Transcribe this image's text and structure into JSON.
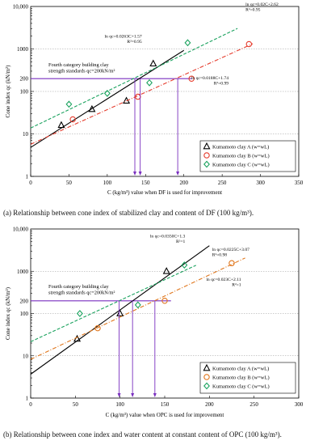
{
  "captions": {
    "a": "(a) Relationship between cone index of stabilized clay and content of DF (100 kg/m³).",
    "b": "(b) Relationship between cone index and water content at constant content of OPC (100 kg/m³)."
  },
  "chart_data": [
    {
      "id": "a",
      "type": "scatter",
      "xlabel": "C (kg/m³) value when DF is used for improvement",
      "ylabel": "Cone index qc (kN/m²)",
      "xlim": [
        0,
        350
      ],
      "ylim": [
        1,
        10000
      ],
      "yscale": "log",
      "xticks": [
        "0",
        "50",
        "100",
        "150",
        "200",
        "250",
        "300",
        "350"
      ],
      "yticks": [
        "1",
        "10",
        "100",
        "200",
        "1000",
        "10,000"
      ],
      "grid": "y-major",
      "legend_position": "bottom-right",
      "standard": {
        "label": "Fourth category building clay strength standards qc=200kN/m²",
        "value": 200
      },
      "series": [
        {
          "name": "Kumamoto clay A (w=wL)",
          "marker": "triangle",
          "color": "#000000",
          "x": [
            40,
            80,
            125,
            160
          ],
          "y": [
            16,
            38,
            60,
            450
          ],
          "fit": {
            "label": "ln qc=0.0263C+1.57",
            "r2": "R²=0.95",
            "a": 0.0263,
            "b": 1.57,
            "x_range": [
              0,
              200
            ]
          },
          "cross_x": 136
        },
        {
          "name": "Kumamoto clay B (w=wL)",
          "marker": "circle",
          "color": "#e53b2c",
          "x": [
            55,
            140,
            210,
            285
          ],
          "y": [
            22,
            75,
            200,
            1300
          ],
          "fit": {
            "label": "ln qc=0.0188C+1.74",
            "r2": "R²=0.99",
            "a": 0.0188,
            "b": 1.74,
            "x_range": [
              0,
              290
            ]
          },
          "cross_x": 192
        },
        {
          "name": "Kumamoto clay C (w=wL)",
          "marker": "diamond",
          "color": "#1aa25e",
          "x": [
            50,
            100,
            155,
            205
          ],
          "y": [
            50,
            90,
            160,
            1400
          ],
          "fit": {
            "label": "ln qc=0.02C+2.62",
            "r2": "R²=0.95",
            "a": 0.02,
            "b": 2.62,
            "x_range": [
              0,
              270
            ]
          },
          "cross_x": 143
        }
      ]
    },
    {
      "id": "b",
      "type": "scatter",
      "xlabel": "C (kg/m³) value when OPC is used for improvement",
      "ylabel": "Cone index qc (kN/m²)",
      "xlim": [
        0,
        300
      ],
      "ylim": [
        1,
        10000
      ],
      "yscale": "log",
      "xticks": [
        "0",
        "50",
        "100",
        "150",
        "200",
        "250",
        "300"
      ],
      "yticks": [
        "1",
        "10",
        "100",
        "200",
        "1000",
        "10,000"
      ],
      "grid": "y-major",
      "legend_position": "bottom-right",
      "standard": {
        "label": "Fourth category building clay strength standards qc=200kN/m²",
        "value": 200
      },
      "series": [
        {
          "name": "Kumamoto clay A (w=wL)",
          "marker": "triangle",
          "color": "#000000",
          "x": [
            52,
            100,
            152
          ],
          "y": [
            25,
            100,
            1000
          ],
          "fit": {
            "label": "ln qc=0.0350C+1.3",
            "r2": "R²=1",
            "a": 0.035,
            "b": 1.3,
            "x_range": [
              0,
              200
            ]
          },
          "cross_x": 114
        },
        {
          "name": "Kumamoto clay B (w=wL)",
          "marker": "circle",
          "color": "#e0761c",
          "x": [
            75,
            150,
            225
          ],
          "y": [
            45,
            200,
            1550
          ],
          "fit": {
            "label": "ln qc=0.023C+2.11",
            "r2": "R²=1",
            "a": 0.023,
            "b": 2.11,
            "x_range": [
              0,
              240
            ]
          },
          "cross_x": 139
        },
        {
          "name": "Kumamoto clay C (w=wL)",
          "marker": "diamond",
          "color": "#1aa25e",
          "x": [
            55,
            120,
            172
          ],
          "y": [
            100,
            160,
            1400
          ],
          "fit": {
            "label": "ln qc=0.0225C+3.07",
            "r2": "R²=0.98",
            "a": 0.0225,
            "b": 3.07,
            "x_range": [
              0,
              185
            ]
          },
          "cross_x": 99
        }
      ]
    }
  ]
}
